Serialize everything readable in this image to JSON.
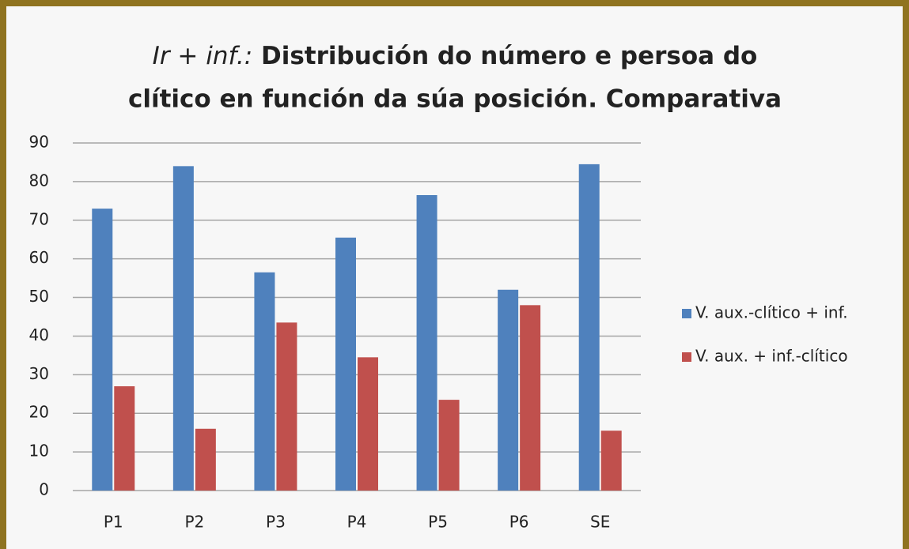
{
  "chart_data": {
    "type": "bar",
    "title_emphasis": "Ir + inf.:",
    "title_lines": [
      "Distribución do número e persoa do",
      "clítico en función da súa posición. Comparativa"
    ],
    "categories": [
      "P1",
      "P2",
      "P3",
      "P4",
      "P5",
      "P6",
      "SE"
    ],
    "series": [
      {
        "name": "V. aux.-clítico + inf.",
        "color": "#4f81bd",
        "values": [
          73,
          84,
          56.5,
          65.5,
          76.5,
          52,
          84.5
        ]
      },
      {
        "name": "V. aux. + inf.-clítico",
        "color": "#c0504d",
        "values": [
          27,
          16,
          43.5,
          34.5,
          23.5,
          48,
          15.5
        ]
      }
    ],
    "ylim": [
      0,
      90
    ],
    "yticks": [
      0,
      10,
      20,
      30,
      40,
      50,
      60,
      70,
      80,
      90
    ],
    "grid": true,
    "legend": "right"
  }
}
